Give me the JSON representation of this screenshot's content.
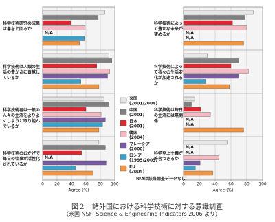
{
  "chart_data": {
    "type": "bar",
    "orientation": "horizontal",
    "series": [
      {
        "name": "米国",
        "period": "(2001/2004)",
        "color": "#e6e6e6"
      },
      {
        "name": "中国",
        "period": "(2001)",
        "color": "#7f7f7f"
      },
      {
        "name": "日本",
        "period": "(2001)",
        "color": "#e3262d"
      },
      {
        "name": "韓国",
        "period": "(2004)",
        "color": "#f5b9c3"
      },
      {
        "name": "マレーシア",
        "period": "(2000)",
        "color": "#7a5aa3"
      },
      {
        "name": "ロシア",
        "period": "(1995/2003)",
        "color": "#3aa0c8"
      },
      {
        "name": "EU",
        "period": "(2005)",
        "color": "#f39443"
      }
    ],
    "panels": [
      {
        "questions": [
          {
            "label": "科学技術研究の成果は害を上回るか",
            "values": [
              86,
              77,
              39,
              59,
              null,
              58,
              51
            ]
          },
          {
            "label": "科学技術は人類の生活の豊かさに貢献しているか",
            "values": [
              92,
              96,
              75,
              93,
              90,
              53,
              78
            ]
          },
          {
            "label": "科学技術者は一般の人々の生活をよりよくしようと取り組んでいるか",
            "values": [
              85,
              92,
              60,
              81,
              87,
              83,
              78
            ]
          },
          {
            "label": "科学技術のおかげで毎日の仕事が活性化されているか",
            "values": [
              78,
              87,
              54,
              null,
              88,
              46,
              70
            ]
          }
        ]
      },
      {
        "questions": [
          {
            "label": "科学技術によって豊かな未来が望めるか",
            "values": [
              88,
              78,
              62,
              80,
              null,
              null,
              76
            ]
          },
          {
            "label": "科学技術によって我々の生活変化が加速されるか",
            "values": [
              30,
              70,
              60,
              82,
              70,
              28,
              58
            ]
          },
          {
            "label": "科学技術は毎日の生活には無関係",
            "values": [
              14,
              10,
              22,
              34,
              null,
              null,
              76
            ]
          },
          {
            "label": "科学至上主義が許容できるか",
            "values": [
              55,
              null,
              null,
              45,
              21,
              15,
              37
            ]
          }
        ]
      }
    ],
    "xlim": [
      0,
      100
    ],
    "xticks": [
      0,
      20,
      40,
      60,
      80,
      100
    ],
    "xlabel": "Agree (%)",
    "grid": true,
    "na_label": "N/A",
    "note": "N/Aは該当調査データなし"
  },
  "caption": {
    "title": "図２　諸外国における科学技術に対する意識調査",
    "source": "（米国 NSF, Science & Engineering Indicators 2006 より）"
  }
}
